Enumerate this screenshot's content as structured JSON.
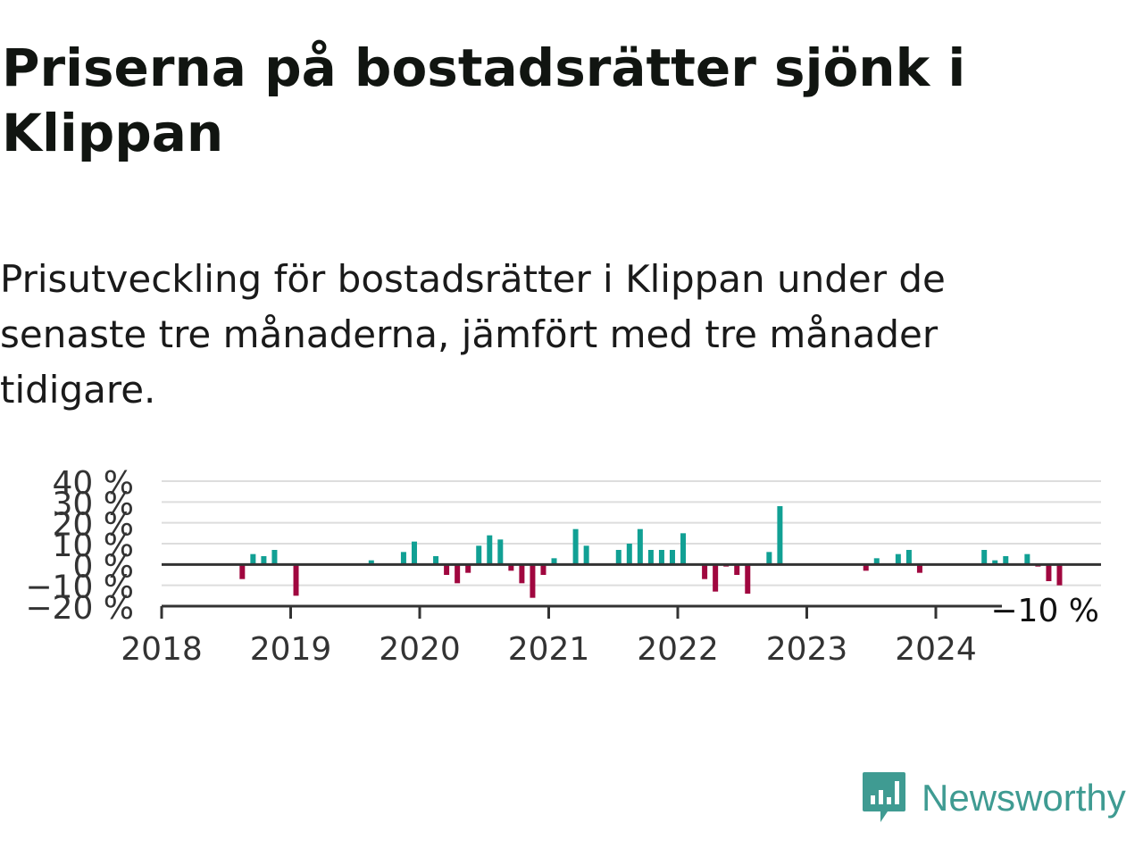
{
  "title": "Priserna på bostadsrätter sjönk i Klippan",
  "subtitle": "Prisutveckling för bostadsrätter i Klippan under de senaste tre månaderna, jämfört med tre månader tidigare.",
  "brand": {
    "name": "Newsworthy",
    "icon": "newsworthy-logo-icon"
  },
  "colors": {
    "positive": "#11a094",
    "negative": "#a0073f",
    "grid": "#dddddd",
    "axis": "#333333",
    "text": "#333333"
  },
  "chart_data": {
    "type": "bar",
    "ylim": [
      -20,
      40
    ],
    "yticks": [
      40,
      30,
      20,
      10,
      0,
      -10,
      -20
    ],
    "ytick_labels": [
      "40 %",
      "30 %",
      "20 %",
      "10 %",
      "0 %",
      "−10 %",
      "−20 %"
    ],
    "xlim": [
      2018.0,
      2025.25
    ],
    "xticks": [
      2018,
      2019,
      2020,
      2021,
      2022,
      2023,
      2024
    ],
    "xtick_labels": [
      "2018",
      "2019",
      "2020",
      "2021",
      "2022",
      "2023",
      "2024"
    ],
    "last_value_label": "−10 %",
    "grid": true,
    "points": [
      {
        "x": "2018-08",
        "y": -7
      },
      {
        "x": "2018-09",
        "y": 5
      },
      {
        "x": "2018-10",
        "y": 4
      },
      {
        "x": "2018-11",
        "y": 7
      },
      {
        "x": "2019-01",
        "y": -15
      },
      {
        "x": "2019-08",
        "y": 2
      },
      {
        "x": "2019-11",
        "y": 6
      },
      {
        "x": "2019-12",
        "y": 11
      },
      {
        "x": "2020-02",
        "y": 4
      },
      {
        "x": "2020-03",
        "y": -5
      },
      {
        "x": "2020-04",
        "y": -9
      },
      {
        "x": "2020-05",
        "y": -4
      },
      {
        "x": "2020-06",
        "y": 9
      },
      {
        "x": "2020-07",
        "y": 14
      },
      {
        "x": "2020-08",
        "y": 12
      },
      {
        "x": "2020-09",
        "y": -3
      },
      {
        "x": "2020-10",
        "y": -9
      },
      {
        "x": "2020-11",
        "y": -16
      },
      {
        "x": "2020-12",
        "y": -5
      },
      {
        "x": "2021-01",
        "y": 3
      },
      {
        "x": "2021-03",
        "y": 17
      },
      {
        "x": "2021-04",
        "y": 9
      },
      {
        "x": "2021-07",
        "y": 7
      },
      {
        "x": "2021-08",
        "y": 10
      },
      {
        "x": "2021-09",
        "y": 17
      },
      {
        "x": "2021-10",
        "y": 7
      },
      {
        "x": "2021-11",
        "y": 7
      },
      {
        "x": "2021-12",
        "y": 7
      },
      {
        "x": "2022-01",
        "y": 15
      },
      {
        "x": "2022-03",
        "y": -7
      },
      {
        "x": "2022-04",
        "y": -13
      },
      {
        "x": "2022-05",
        "y": -1
      },
      {
        "x": "2022-06",
        "y": -5
      },
      {
        "x": "2022-07",
        "y": -14
      },
      {
        "x": "2022-09",
        "y": 6
      },
      {
        "x": "2022-10",
        "y": 28
      },
      {
        "x": "2023-06",
        "y": -3
      },
      {
        "x": "2023-07",
        "y": 3
      },
      {
        "x": "2023-09",
        "y": 5
      },
      {
        "x": "2023-10",
        "y": 7
      },
      {
        "x": "2023-11",
        "y": -4
      },
      {
        "x": "2024-05",
        "y": 7
      },
      {
        "x": "2024-06",
        "y": 2
      },
      {
        "x": "2024-07",
        "y": 4
      },
      {
        "x": "2024-09",
        "y": 5
      },
      {
        "x": "2024-10",
        "y": -1
      },
      {
        "x": "2024-11",
        "y": -8
      },
      {
        "x": "2024-12",
        "y": -10
      }
    ]
  }
}
